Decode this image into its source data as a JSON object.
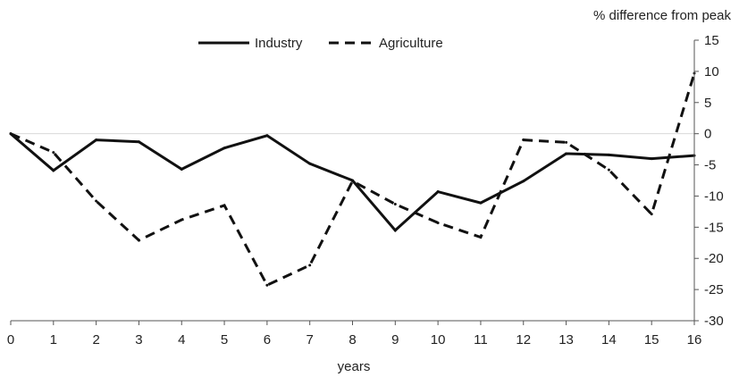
{
  "chart_data": {
    "type": "line",
    "title": "",
    "xlabel": "years",
    "ylabel": "% difference from peak",
    "x": [
      0,
      1,
      2,
      3,
      4,
      5,
      6,
      7,
      8,
      9,
      10,
      11,
      12,
      13,
      14,
      15,
      16
    ],
    "xlim": [
      0,
      16
    ],
    "ylim": [
      -30,
      15
    ],
    "yticks": [
      15,
      10,
      5,
      0,
      -5,
      -10,
      -15,
      -20,
      -25,
      -30
    ],
    "y_axis_side": "right",
    "grid": false,
    "legend_position": "top-center",
    "series": [
      {
        "name": "Industry",
        "style": "solid",
        "color": "#111111",
        "values": [
          0,
          -5.9,
          -1.0,
          -1.3,
          -5.7,
          -2.3,
          -0.3,
          -4.8,
          -7.5,
          -15.5,
          -9.3,
          -11.1,
          -7.6,
          -3.2,
          -3.4,
          -4.0,
          -3.5
        ]
      },
      {
        "name": "Agriculture",
        "style": "dashed",
        "color": "#111111",
        "values": [
          0,
          -3.0,
          -10.8,
          -17.1,
          -13.8,
          -11.5,
          -24.3,
          -21.1,
          -7.6,
          -11.3,
          -14.3,
          -16.6,
          -1.0,
          -1.4,
          -5.8,
          -12.9,
          9.7
        ]
      }
    ]
  }
}
